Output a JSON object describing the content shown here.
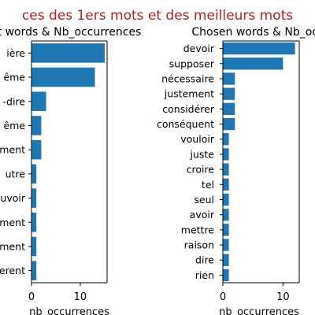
{
  "suptitle": "ces des 1ers mots et des meilleurs mots",
  "chart_data": [
    {
      "type": "bar",
      "orientation": "horizontal",
      "title": "t words & Nb_occurrences",
      "xlabel": "nb_occurrences",
      "ylabel": "",
      "xlim": [
        0,
        15.5
      ],
      "xticks": [
        0,
        10
      ],
      "categories": [
        "ière",
        "ême",
        "-dire",
        "ême",
        "ment",
        "utre",
        "uvoir",
        "ment",
        "ment",
        "erent"
      ],
      "values": [
        15,
        13,
        3,
        2,
        2,
        1,
        1,
        1,
        1,
        1
      ],
      "bar_color": "#1f77b4",
      "grid": false
    },
    {
      "type": "bar",
      "orientation": "horizontal",
      "title": "Chosen words & Nb_occu",
      "xlabel": "nb_occurrences",
      "ylabel": "",
      "xlim": [
        0,
        12.7
      ],
      "xticks": [
        0,
        10
      ],
      "categories": [
        "devoir",
        "supposer",
        "nécessaire",
        "justement",
        "considérer",
        "conséquent",
        "vouloir",
        "juste",
        "croire",
        "tel",
        "seul",
        "avoir",
        "mettre",
        "raison",
        "dire",
        "rien"
      ],
      "values": [
        12,
        10,
        2,
        2,
        2,
        2,
        1,
        1,
        1,
        1,
        1,
        1,
        1,
        1,
        1,
        1
      ],
      "bar_color": "#1f77b4",
      "grid": false
    }
  ],
  "colors": {
    "suptitle": "#b22222",
    "text": "#000000",
    "axis": "#000000"
  }
}
